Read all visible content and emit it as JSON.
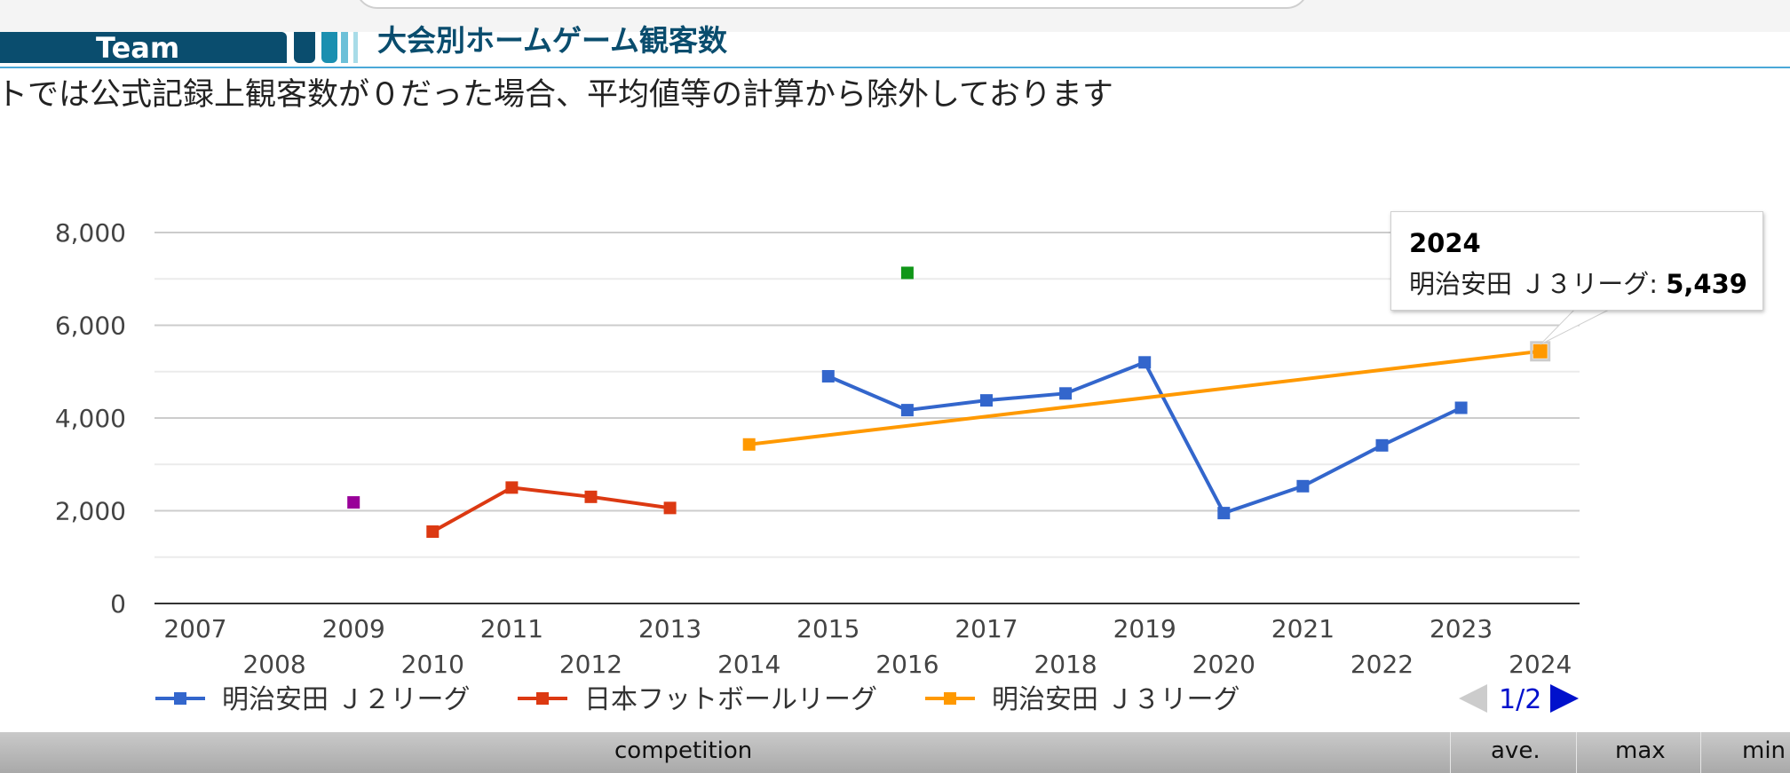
{
  "header": {
    "team_label": "Team",
    "section_title": "大会別ホームゲーム観客数"
  },
  "note": "トでは公式記録上観客数が０だった場合、平均値等の計算から除外しております",
  "legend": {
    "page": "1/2"
  },
  "tooltip": {
    "year": "2024",
    "series": "明治安田 Ｊ３リーグ: ",
    "value": "5,439"
  },
  "table_header": {
    "competition": "competition",
    "ave": "ave.",
    "max": "max",
    "min": "min"
  },
  "colors": {
    "j2": "#3366cc",
    "jfl": "#dc3912",
    "j3": "#ff9900",
    "green": "#109618",
    "purple": "#990099"
  },
  "chart_data": {
    "type": "line",
    "x": [
      2007,
      2008,
      2009,
      2010,
      2011,
      2012,
      2013,
      2014,
      2015,
      2016,
      2017,
      2018,
      2019,
      2020,
      2021,
      2022,
      2023,
      2024
    ],
    "ylim": [
      0,
      8000
    ],
    "yticks": [
      0,
      2000,
      4000,
      6000,
      8000
    ],
    "ytick_labels": [
      "0",
      "2,000",
      "4,000",
      "6,000",
      "8,000"
    ],
    "grid": true,
    "legend_position": "bottom",
    "series": [
      {
        "name": "明治安田 Ｊ２リーグ",
        "color": "#3366cc",
        "values": [
          null,
          null,
          null,
          null,
          null,
          null,
          null,
          null,
          4900,
          4170,
          4380,
          4530,
          5200,
          1950,
          2530,
          3410,
          4220,
          null
        ]
      },
      {
        "name": "日本フットボールリーグ",
        "color": "#dc3912",
        "values": [
          null,
          null,
          null,
          1550,
          2500,
          2300,
          2060,
          null,
          null,
          null,
          null,
          null,
          null,
          null,
          null,
          null,
          null,
          null
        ]
      },
      {
        "name": "明治安田 Ｊ３リーグ",
        "color": "#ff9900",
        "values": [
          null,
          null,
          null,
          null,
          null,
          null,
          null,
          3430,
          null,
          null,
          null,
          null,
          null,
          null,
          null,
          null,
          null,
          5439
        ]
      },
      {
        "color": "#109618",
        "values": [
          null,
          null,
          null,
          null,
          null,
          null,
          null,
          null,
          null,
          7130,
          null,
          null,
          null,
          null,
          null,
          null,
          null,
          null
        ]
      },
      {
        "color": "#990099",
        "values": [
          null,
          null,
          2180,
          null,
          null,
          null,
          null,
          null,
          null,
          null,
          null,
          null,
          null,
          null,
          null,
          null,
          null,
          null
        ]
      }
    ]
  }
}
